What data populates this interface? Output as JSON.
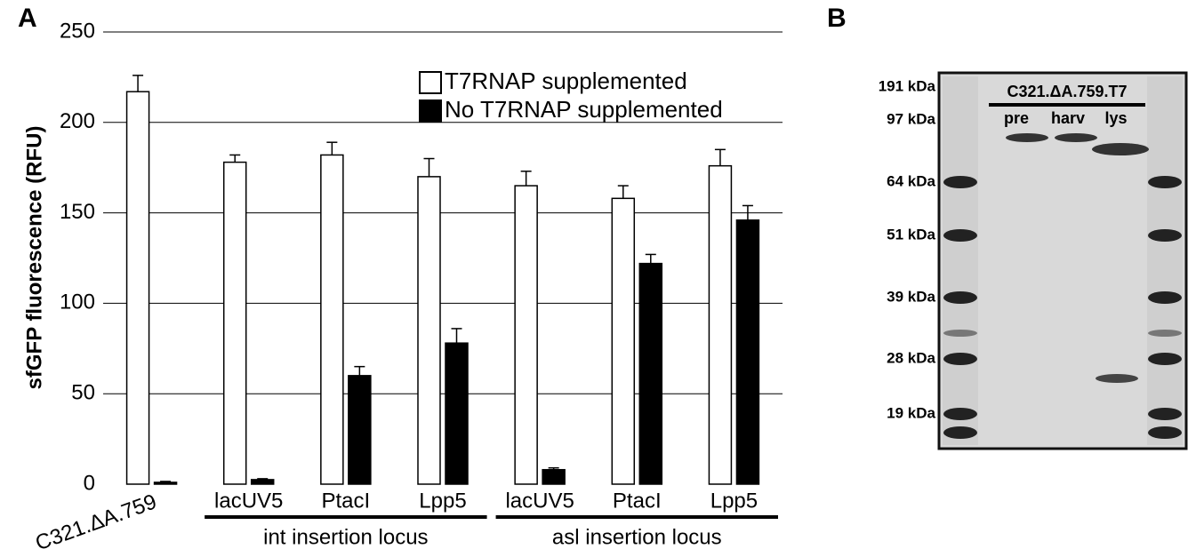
{
  "panel_a": {
    "label": "A",
    "chart_data": {
      "type": "bar",
      "ylabel": "sfGFP fluorescence (RFU)",
      "categories": [
        "C321.ΔA.759",
        "lacUV5",
        "PtacI",
        "Lpp5",
        "lacUV5",
        "PtacI",
        "Lpp5"
      ],
      "groups": [
        "int insertion locus",
        "asl insertion locus"
      ],
      "series": [
        {
          "name": "T7RNAP supplemented",
          "color": "#ffffff",
          "values": [
            217,
            178,
            182,
            170,
            165,
            158,
            176
          ],
          "errors": [
            9,
            4,
            7,
            10,
            8,
            7,
            9
          ]
        },
        {
          "name": "No T7RNAP supplemented",
          "color": "#000000",
          "values": [
            1,
            2.5,
            60,
            78,
            8,
            122,
            146
          ],
          "errors": [
            0.5,
            0.5,
            5,
            8,
            1,
            5,
            8
          ]
        }
      ],
      "ylim": [
        0,
        250
      ],
      "yticks": [
        0,
        50,
        100,
        150,
        200,
        250
      ],
      "grid": true,
      "legend": "upper right"
    }
  },
  "panel_b": {
    "label": "B",
    "title": "C321.ΔA.759.T7",
    "lanes": [
      "pre",
      "harv",
      "lys"
    ],
    "markers": [
      "191 kDa",
      "97 kDa",
      "64 kDa",
      "51 kDa",
      "39 kDa",
      "28 kDa",
      "19 kDa"
    ]
  }
}
